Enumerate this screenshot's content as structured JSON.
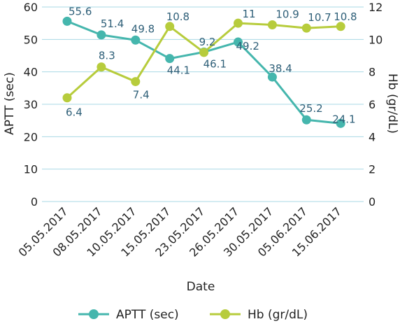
{
  "chart_data": {
    "type": "line",
    "categories": [
      "05.05.2017",
      "08.05.2017",
      "10.05.2017",
      "15.05.2017",
      "23.05.2017",
      "26.05.2017",
      "30.05.2017",
      "05.06.2017",
      "15.06.2017"
    ],
    "xlabel": "Date",
    "ylabel": "APTT (sec)",
    "y2label": "Hb (gr/dL)",
    "ylim": [
      0,
      60
    ],
    "y2lim": [
      0,
      12
    ],
    "yticks": [
      "0",
      "10",
      "20",
      "30",
      "40",
      "50",
      "60"
    ],
    "y2ticks": [
      "0",
      "2",
      "4",
      "6",
      "8",
      "10",
      "12"
    ],
    "grid": true,
    "legend_position": "bottom",
    "series": [
      {
        "name": "APTT (sec)",
        "axis": "left",
        "color": "#45b6ad",
        "label_color": "#2e5f78",
        "values": [
          55.6,
          51.4,
          49.8,
          44.1,
          46.1,
          49.2,
          38.4,
          25.2,
          24.1
        ],
        "labels": [
          "55.6",
          "51.4",
          "49.8",
          "44.1",
          "46.1",
          "49.2",
          "38.4",
          "25.2",
          "24.1"
        ]
      },
      {
        "name": "Hb (gr/dL)",
        "axis": "right",
        "color": "#b7cc3c",
        "label_color": "#2e5f78",
        "values": [
          6.4,
          8.3,
          7.4,
          10.8,
          9.2,
          11,
          10.9,
          10.7,
          10.8
        ],
        "labels": [
          "6.4",
          "8.3",
          "7.4",
          "10.8",
          "9.2",
          "11",
          "10.9",
          "10.7",
          "10.8"
        ]
      }
    ]
  }
}
